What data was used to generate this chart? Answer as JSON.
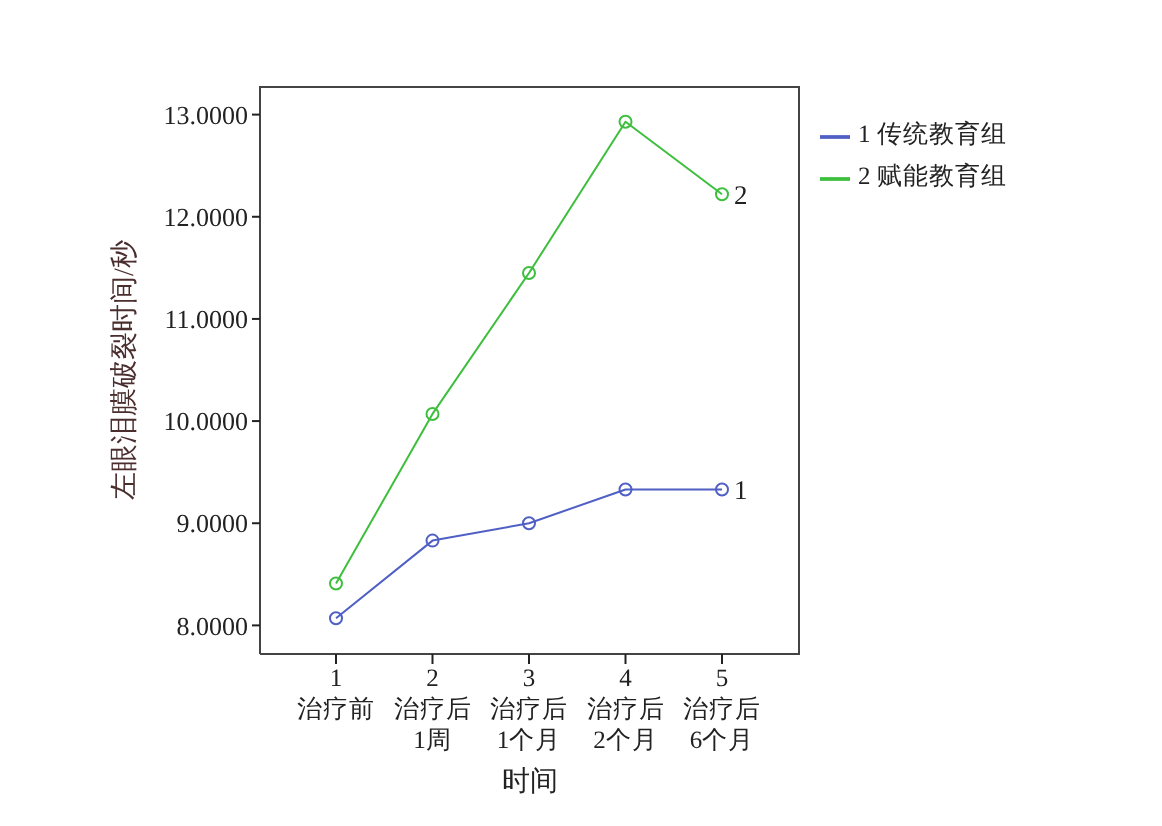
{
  "chart_data": {
    "type": "line",
    "xlabel": "时间",
    "ylabel": "左眼泪膜破裂时间/秒",
    "categories": [
      "1\n治疗前",
      "2\n治疗后\n1周",
      "3\n治疗后\n1个月",
      "4\n治疗后\n2个月",
      "5\n治疗后\n6个月"
    ],
    "series": [
      {
        "name": "1 传统教育组",
        "color": "#4f5fc4",
        "values": [
          8.07,
          8.83,
          9.0,
          9.33,
          9.33
        ]
      },
      {
        "name": "2 赋能教育组",
        "color": "#3dbf3d",
        "values": [
          8.41,
          10.07,
          11.45,
          12.93,
          12.22
        ]
      }
    ],
    "ylim": [
      7.72,
      13.28
    ],
    "yticks": [
      {
        "value": 8,
        "label": "8.0000"
      },
      {
        "value": 9,
        "label": "9.0000"
      },
      {
        "value": 10,
        "label": "10.0000"
      },
      {
        "value": 11,
        "label": "11.0000"
      },
      {
        "value": 12,
        "label": "12.0000"
      },
      {
        "value": 13,
        "label": "13.0000"
      }
    ],
    "marker": "circle",
    "legend": "top right",
    "annotations": [
      {
        "text": "1",
        "x": "5\n治疗后\n6个月",
        "y": 9.33
      },
      {
        "text": "2",
        "x": "5\n治疗后\n6个月",
        "y": 12.22
      }
    ]
  }
}
